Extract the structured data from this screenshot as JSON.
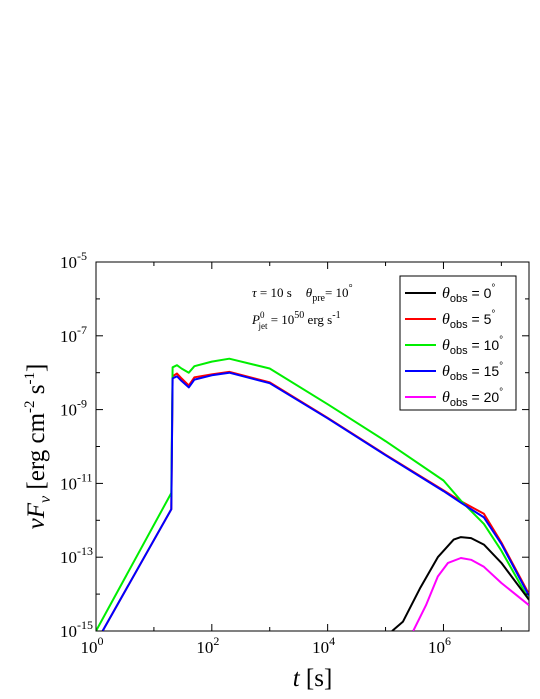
{
  "chart_data": {
    "type": "line",
    "xscale": "log",
    "yscale": "log",
    "xlim": [
      1,
      30000000
    ],
    "ylim": [
      1e-15,
      1e-05
    ],
    "x_ticks": [
      {
        "value": 1,
        "base": "10",
        "exp": "0"
      },
      {
        "value": 100,
        "base": "10",
        "exp": "2"
      },
      {
        "value": 10000,
        "base": "10",
        "exp": "4"
      },
      {
        "value": 1000000,
        "base": "10",
        "exp": "6"
      }
    ],
    "y_ticks": [
      {
        "value": 1e-15,
        "base": "10",
        "exp": "-15"
      },
      {
        "value": 1e-13,
        "base": "10",
        "exp": "-13"
      },
      {
        "value": 1e-11,
        "base": "10",
        "exp": "-11"
      },
      {
        "value": 1e-09,
        "base": "10",
        "exp": "-9"
      },
      {
        "value": 1e-07,
        "base": "10",
        "exp": "-7"
      },
      {
        "value": 1e-05,
        "base": "10",
        "exp": "-5"
      }
    ],
    "xlabel": {
      "italic": "t",
      "unit": " [s]"
    },
    "ylabel": {
      "prefix": "νF",
      "sub": "ν",
      "unit": " [erg cm",
      "exp1": "-2",
      "mid": " s",
      "exp2": "-1",
      "close": "]"
    },
    "annotations": {
      "line1": {
        "tau": "τ",
        "tau_val": " = 10 s",
        "theta": "θ",
        "theta_sub": "pre",
        "theta_val": "= 10",
        "deg": "°"
      },
      "line2": {
        "P": "P",
        "sup": "0",
        "sub": "jet",
        "val": " = 10",
        "exp": "50",
        "unit": " erg s",
        "unit_exp": "-1"
      }
    },
    "legend_position": "top-right",
    "series": [
      {
        "name": "θobs = 0°",
        "label_theta": "θ",
        "label_sub": "obs",
        "label_val": " = 0",
        "color": "#000000",
        "x": [
          130000,
          200000,
          400000,
          800000,
          1500000,
          2000000,
          3000000,
          5000000,
          10000000,
          30000000
        ],
        "y": [
          1e-15,
          1.8e-15,
          1.5e-14,
          1e-13,
          3e-13,
          3.5e-13,
          3.3e-13,
          2.2e-13,
          7e-14,
          7e-15
        ]
      },
      {
        "name": "θobs = 5°",
        "label_theta": "θ",
        "label_sub": "obs",
        "label_val": " = 5",
        "color": "#ff0000",
        "x": [
          1.3,
          20,
          21,
          25,
          30,
          40,
          50,
          100,
          200,
          1000,
          10000,
          100000,
          1000000,
          2000000,
          5000000,
          10000000,
          30000000
        ],
        "y": [
          1e-15,
          2e-12,
          8e-09,
          9.5e-09,
          7e-09,
          4.5e-09,
          7.5e-09,
          9e-09,
          1.05e-08,
          5.5e-09,
          6e-10,
          6e-11,
          6.5e-12,
          3.3e-12,
          1.5e-12,
          2.5e-13,
          1e-14
        ]
      },
      {
        "name": "θobs = 10°",
        "label_theta": "θ",
        "label_sub": "obs",
        "label_val": " = 10",
        "color": "#00ee00",
        "x": [
          1,
          20,
          21,
          25,
          30,
          40,
          50,
          100,
          200,
          1000,
          10000,
          100000,
          1000000,
          2000000,
          5000000,
          10000000,
          30000000
        ],
        "y": [
          1e-15,
          5.5e-12,
          1.4e-08,
          1.6e-08,
          1.3e-08,
          1e-08,
          1.5e-08,
          2e-08,
          2.4e-08,
          1.3e-08,
          1.4e-09,
          1.4e-10,
          1.2e-11,
          3.4e-12,
          8e-13,
          1.5e-13,
          7e-15
        ]
      },
      {
        "name": "θobs = 15°",
        "label_theta": "θ",
        "label_sub": "obs",
        "label_val": " = 15",
        "color": "#0000ff",
        "x": [
          1.3,
          20,
          21,
          25,
          30,
          40,
          50,
          100,
          200,
          1000,
          10000,
          100000,
          1000000,
          2000000,
          5000000,
          10000000,
          30000000
        ],
        "y": [
          1e-15,
          2e-12,
          7e-09,
          8e-09,
          6e-09,
          4e-09,
          6.5e-09,
          8.5e-09,
          1e-08,
          5.2e-09,
          5.8e-10,
          5.8e-11,
          6.2e-12,
          3e-12,
          1.2e-12,
          2.3e-13,
          9e-15
        ]
      },
      {
        "name": "θobs = 20°",
        "label_theta": "θ",
        "label_sub": "obs",
        "label_val": " = 20",
        "color": "#ff00ff",
        "x": [
          300000,
          500000,
          800000,
          1200000,
          2000000,
          3000000,
          5000000,
          10000000,
          30000000
        ],
        "y": [
          1e-15,
          5e-15,
          3e-14,
          7e-14,
          9.5e-14,
          8.5e-14,
          5.5e-14,
          2e-14,
          5e-15
        ]
      }
    ]
  }
}
